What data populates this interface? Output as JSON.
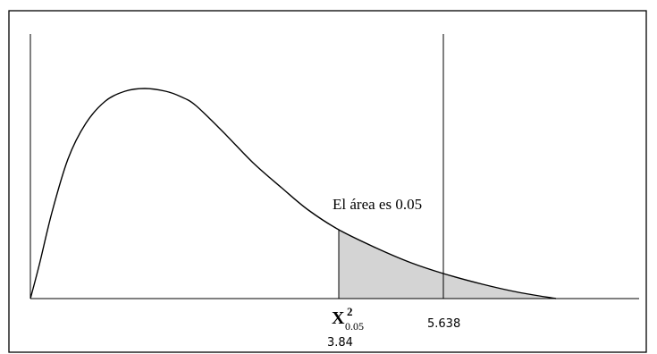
{
  "figure": {
    "annotation": "El área es 0.05",
    "critical_label": {
      "base": "X",
      "superscript": "2",
      "subscript": "0.05"
    },
    "critical_value_label": "3.84",
    "observed_value_label": "5.638"
  },
  "chart_data": {
    "type": "area",
    "distribution": "chi-square",
    "shaded_tail_area": 0.05,
    "critical_value": 3.84,
    "observed_value": 5.638,
    "colors": {
      "shade": "#d4d4d4",
      "curve": "#000000",
      "frame": "#000000"
    },
    "grid": false
  }
}
